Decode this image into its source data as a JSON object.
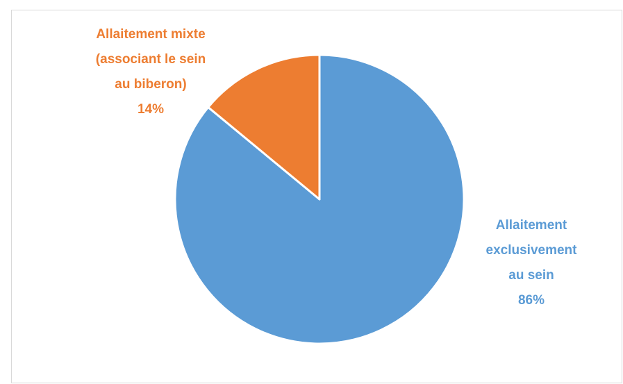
{
  "chart_data": {
    "type": "pie",
    "title": "",
    "slices": [
      {
        "name": "Allaitement exclusivement au sein",
        "value": 86,
        "label_lines": [
          "Allaitement",
          "exclusivement",
          "au sein",
          "86%"
        ],
        "color": "#5B9BD5"
      },
      {
        "name": "Allaitement mixte (associant le sein au biberon)",
        "value": 14,
        "label_lines": [
          "Allaitement mixte",
          "(associant le sein",
          "au biberon)",
          "14%"
        ],
        "color": "#ED7D31"
      }
    ],
    "start_angle_deg": 0,
    "direction": "clockwise",
    "legend": "none",
    "data_labels": "outside, category name and percentage"
  }
}
